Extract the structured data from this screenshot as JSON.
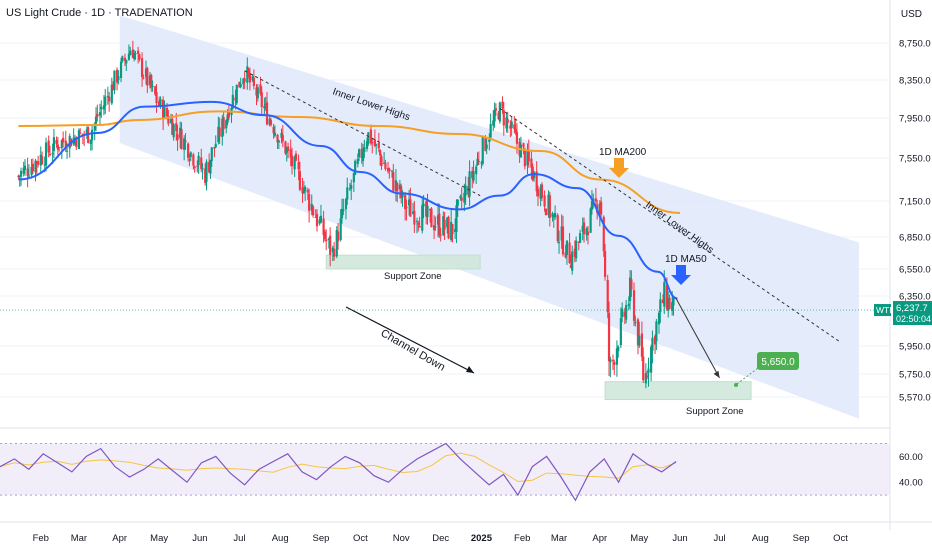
{
  "header": {
    "title": "US Light Crude · 1D · TRADENATION",
    "currency": "USD"
  },
  "colors": {
    "up": "#089981",
    "down": "#f23645",
    "ma200": "#f5a025",
    "ma50": "#2962ff",
    "channel": "#dbe6fb",
    "zone": "#cfe8dc",
    "rsi": "#7e57c2",
    "rsi_ma": "#f5c542",
    "target": "#4caf50",
    "price_tag": "#089981"
  },
  "price_axis": {
    "ticks": [
      8750,
      8350,
      7950,
      7550,
      7150,
      6850,
      6550,
      6350,
      5950,
      5750,
      5570
    ],
    "tick_labels": [
      "8,750.0",
      "8,350.0",
      "7,950.0",
      "7,550.0",
      "7,150.0",
      "6,850.0",
      "6,550.0",
      "6,350.0",
      "5,950.0",
      "5,750.0",
      "5,570.0"
    ]
  },
  "rsi_axis": {
    "ticks": [
      60,
      40
    ],
    "tick_labels": [
      "60.00",
      "40.00"
    ]
  },
  "time_axis": {
    "labels": [
      "Feb",
      "Mar",
      "Apr",
      "May",
      "Jun",
      "Jul",
      "Aug",
      "Sep",
      "Oct",
      "Nov",
      "Dec",
      "2025",
      "Feb",
      "Mar",
      "Apr",
      "May",
      "Jun",
      "Jul",
      "Aug",
      "Sep",
      "Oct"
    ]
  },
  "current_price": {
    "symbol": "WTI",
    "value": "6,237.7",
    "countdown": "02:50:04"
  },
  "annotations": {
    "inner_lower_highs_1": "Inner Lower Highs",
    "inner_lower_highs_2": "Inner Lower Highs",
    "ma200_label": "1D MA200",
    "ma50_label": "1D MA50",
    "support_zone_1": "Support Zone",
    "support_zone_2": "Support Zone",
    "channel_label": "Channel Down",
    "target": "5,650.0"
  },
  "chart_data": {
    "type": "candlestick",
    "title": "US Light Crude · 1D · TRADENATION",
    "series": [
      {
        "name": "1D MA200",
        "type": "line",
        "points": [
          [
            "2024-01-15",
            7870
          ],
          [
            "2024-03-15",
            7880
          ],
          [
            "2024-04-15",
            7930
          ],
          [
            "2024-06-15",
            8020
          ],
          [
            "2024-08-15",
            7960
          ],
          [
            "2024-10-15",
            7870
          ],
          [
            "2024-12-15",
            7790
          ],
          [
            "2025-02-15",
            7620
          ],
          [
            "2025-04-01",
            7350
          ],
          [
            "2025-06-01",
            7050
          ]
        ]
      },
      {
        "name": "1D MA50",
        "type": "line",
        "points": [
          [
            "2024-01-15",
            7350
          ],
          [
            "2024-03-15",
            7800
          ],
          [
            "2024-04-20",
            8070
          ],
          [
            "2024-06-10",
            8120
          ],
          [
            "2024-07-20",
            7980
          ],
          [
            "2024-09-01",
            7670
          ],
          [
            "2024-10-01",
            7420
          ],
          [
            "2024-11-01",
            7220
          ],
          [
            "2024-12-15",
            7080
          ],
          [
            "2025-01-15",
            7200
          ],
          [
            "2025-02-10",
            7400
          ],
          [
            "2025-03-15",
            7270
          ],
          [
            "2025-04-15",
            6860
          ],
          [
            "2025-05-15",
            6530
          ],
          [
            "2025-05-30",
            6330
          ]
        ]
      }
    ],
    "ohlc_path_close": [
      [
        "2024-01-15",
        7380
      ],
      [
        "2024-02-15",
        7700
      ],
      [
        "2024-03-10",
        7800
      ],
      [
        "2024-04-10",
        8700
      ],
      [
        "2024-05-01",
        8100
      ],
      [
        "2024-06-05",
        7400
      ],
      [
        "2024-07-05",
        8450
      ],
      [
        "2024-08-05",
        7650
      ],
      [
        "2024-09-10",
        6700
      ],
      [
        "2024-10-07",
        7800
      ],
      [
        "2024-11-05",
        7100
      ],
      [
        "2024-12-10",
        6900
      ],
      [
        "2025-01-15",
        8050
      ],
      [
        "2025-02-10",
        7400
      ],
      [
        "2025-03-10",
        6650
      ],
      [
        "2025-04-02",
        7200
      ],
      [
        "2025-04-09",
        5750
      ],
      [
        "2025-04-25",
        6400
      ],
      [
        "2025-05-05",
        5700
      ],
      [
        "2025-05-20",
        6350
      ],
      [
        "2025-05-29",
        6237.7
      ]
    ],
    "channel_down": {
      "upper": [
        [
          "2024-04-01",
          9050
        ],
        [
          "2025-10-15",
          6800
        ]
      ],
      "lower": [
        [
          "2024-04-01",
          7700
        ],
        [
          "2025-10-15",
          5400
        ]
      ]
    },
    "support_zones": [
      {
        "label": "Support Zone",
        "from": "2024-09-05",
        "to": "2024-12-31",
        "low": 6550,
        "high": 6680
      },
      {
        "label": "Support Zone",
        "from": "2025-04-05",
        "to": "2025-07-25",
        "low": 5550,
        "high": 5690
      }
    ],
    "inner_lower_highs": [
      {
        "from": [
          "2024-07-05",
          8450
        ],
        "to": [
          "2024-12-31",
          7200
        ]
      },
      {
        "from": [
          "2025-01-15",
          8050
        ],
        "to": [
          "2025-10-01",
          5980
        ]
      }
    ],
    "projection": [
      [
        "2025-05-29",
        6330
      ],
      [
        "2025-07-01",
        5720
      ]
    ],
    "target": 5650,
    "rsi": {
      "ylim": [
        20,
        75
      ],
      "band": [
        30,
        70
      ],
      "values": [
        52,
        58,
        50,
        62,
        55,
        48,
        60,
        66,
        52,
        44,
        50,
        58,
        49,
        40,
        55,
        60,
        47,
        38,
        50,
        56,
        62,
        48,
        42,
        52,
        60,
        55,
        45,
        40,
        50,
        58,
        64,
        70,
        58,
        48,
        38,
        46,
        30,
        52,
        60,
        44,
        26,
        48,
        58,
        40,
        62,
        54,
        48,
        56
      ]
    },
    "ylim": [
      5350,
      8950
    ]
  }
}
